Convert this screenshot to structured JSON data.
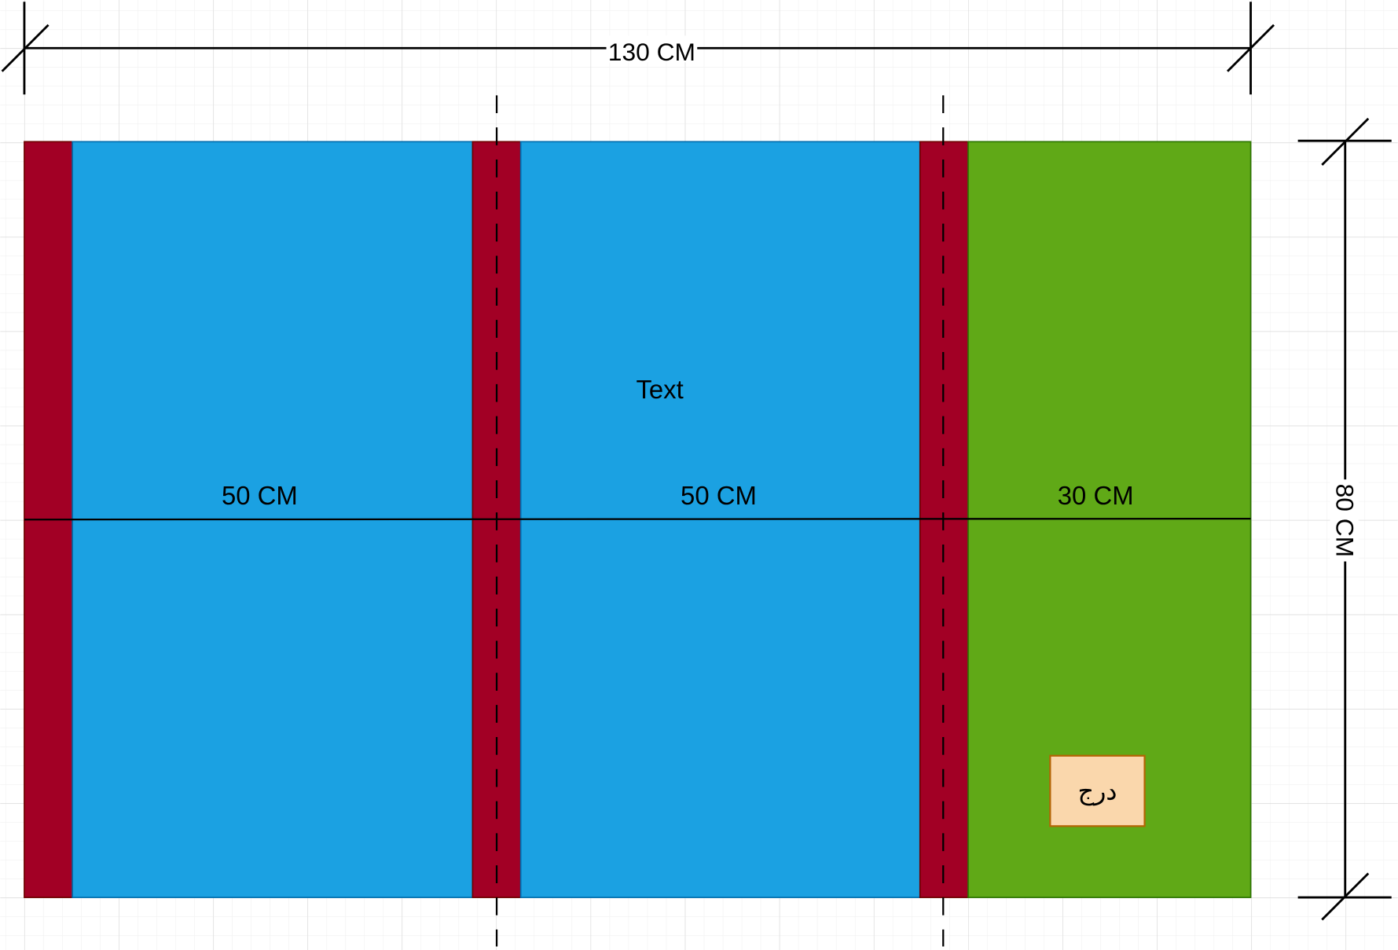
{
  "colors": {
    "post_fill": "#a20025",
    "post_stroke": "#6f0000",
    "panel_fill": "#1ba1e2",
    "panel_stroke": "#006eaf",
    "side_fill": "#60a917",
    "side_stroke": "#2d7600",
    "drawer_fill": "#fad7ac",
    "drawer_stroke": "#b46504",
    "grid_major": "#d6d6d6",
    "grid_minor": "#f0f0f0"
  },
  "dimensions": {
    "total_width": "130 CM",
    "total_height": "80 CM"
  },
  "sections": [
    {
      "label": "50 CM"
    },
    {
      "label": "50 CM"
    },
    {
      "label": "30 CM"
    }
  ],
  "center_text": "Text",
  "drawer": {
    "label": "درج"
  }
}
